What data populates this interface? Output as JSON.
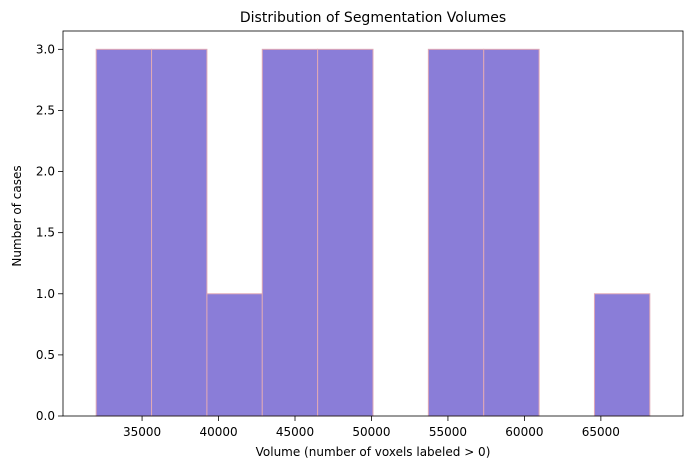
{
  "colors": {
    "bar_fill": "#8a7dd8",
    "bar_edge": "#e0a9b6",
    "axis": "#000000",
    "background": "#ffffff"
  },
  "chart_data": {
    "type": "bar",
    "subtype": "histogram",
    "title": "Distribution of Segmentation Volumes",
    "xlabel": "Volume (number of voxels labeled > 0)",
    "ylabel": "Number of cases",
    "bin_edges": [
      32000,
      35620,
      39240,
      42860,
      46480,
      50100,
      53720,
      57340,
      60960,
      64580,
      68200
    ],
    "counts": [
      3,
      3,
      1,
      3,
      3,
      0,
      3,
      3,
      0,
      1
    ],
    "xlim": [
      29830,
      70370
    ],
    "ylim": [
      0,
      3.15
    ],
    "xticks": [
      35000,
      40000,
      45000,
      50000,
      55000,
      60000,
      65000
    ],
    "xtick_labels": [
      "35000",
      "40000",
      "45000",
      "50000",
      "55000",
      "60000",
      "65000"
    ],
    "yticks": [
      0,
      0.5,
      1,
      1.5,
      2,
      2.5,
      3
    ],
    "ytick_labels": [
      "0.0",
      "0.5",
      "1.0",
      "1.5",
      "2.0",
      "2.5",
      "3.0"
    ],
    "grid": false,
    "legend": "none"
  }
}
